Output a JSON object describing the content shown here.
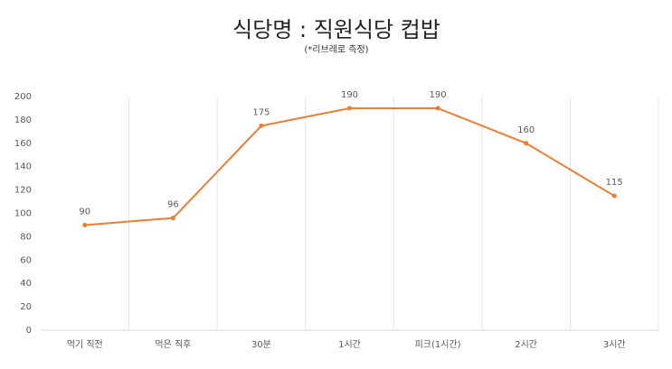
{
  "chart_data": {
    "type": "line",
    "title": "식당명 : 직원식당 컵밥",
    "subtitle": "(*리브레로 측정)",
    "categories": [
      "먹기 직전",
      "먹은 직후",
      "30분",
      "1시간",
      "피크(1시간)",
      "2시간",
      "3시간"
    ],
    "values": [
      90,
      96,
      175,
      190,
      190,
      160,
      115
    ],
    "color": "#ed7d31",
    "ylim": [
      0,
      200
    ],
    "yticks": [
      0,
      20,
      40,
      60,
      80,
      100,
      120,
      140,
      160,
      180,
      200
    ],
    "grid": true
  }
}
